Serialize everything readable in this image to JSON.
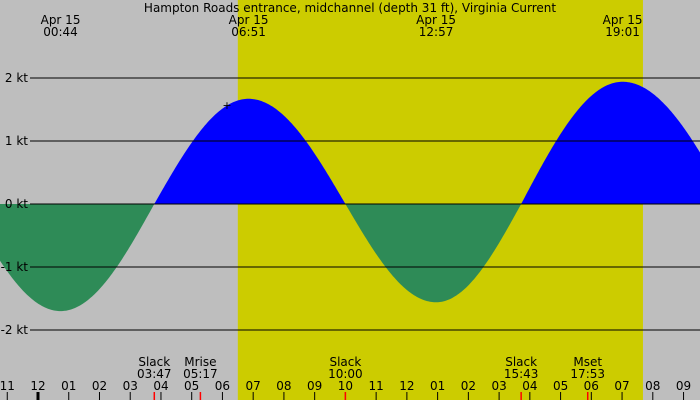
{
  "chart_data": {
    "type": "area",
    "title": "Hampton Roads entrance, midchannel (depth 31 ft), Virginia Current",
    "y_unit": "kt",
    "ylim": [
      -2,
      2
    ],
    "y_ticks": [
      {
        "value": 2,
        "label": "2 kt"
      },
      {
        "value": 1,
        "label": "1 kt"
      },
      {
        "value": 0,
        "label": "0 kt"
      },
      {
        "value": -1,
        "label": "-1 kt"
      },
      {
        "value": -2,
        "label": "-2 kt"
      }
    ],
    "x_range_hours": [
      -1.24,
      21.54
    ],
    "x_tick_labels": [
      "11",
      "12",
      "01",
      "02",
      "03",
      "04",
      "05",
      "06",
      "07",
      "08",
      "09",
      "10",
      "11",
      "12",
      "01",
      "02",
      "03",
      "04",
      "05",
      "06",
      "07",
      "08",
      "09"
    ],
    "x_tick_hours": [
      -1,
      0,
      1,
      2,
      3,
      4,
      5,
      6,
      7,
      8,
      9,
      10,
      11,
      12,
      13,
      14,
      15,
      16,
      17,
      18,
      19,
      20,
      21
    ],
    "daylight_hours": [
      6.5,
      19.68
    ],
    "colors": {
      "background": "#bebebe",
      "daylight": "#cccc00",
      "flood": "#0000ff",
      "ebb": "#2e8b57",
      "event_marker": "#ff0000"
    },
    "extremes": [
      {
        "date": "Apr 15",
        "time": "00:44",
        "hour": 0.733,
        "value": -1.7
      },
      {
        "date": "Apr 15",
        "time": "06:51",
        "hour": 6.85,
        "value": 1.67
      },
      {
        "date": "Apr 15",
        "time": "12:57",
        "hour": 12.95,
        "value": -1.56
      },
      {
        "date": "Apr 15",
        "time": "19:01",
        "hour": 19.017,
        "value": 1.94
      }
    ],
    "slacks": [
      {
        "label": "Slack",
        "time": "03:47",
        "hour": 3.783
      },
      {
        "label": "Slack",
        "time": "10:00",
        "hour": 10.0
      },
      {
        "label": "Slack",
        "time": "15:43",
        "hour": 15.717
      }
    ],
    "moon_events": [
      {
        "label": "Mrise",
        "time": "05:17",
        "hour": 5.283
      },
      {
        "label": "Mset",
        "time": "17:53",
        "hour": 17.883
      }
    ]
  }
}
